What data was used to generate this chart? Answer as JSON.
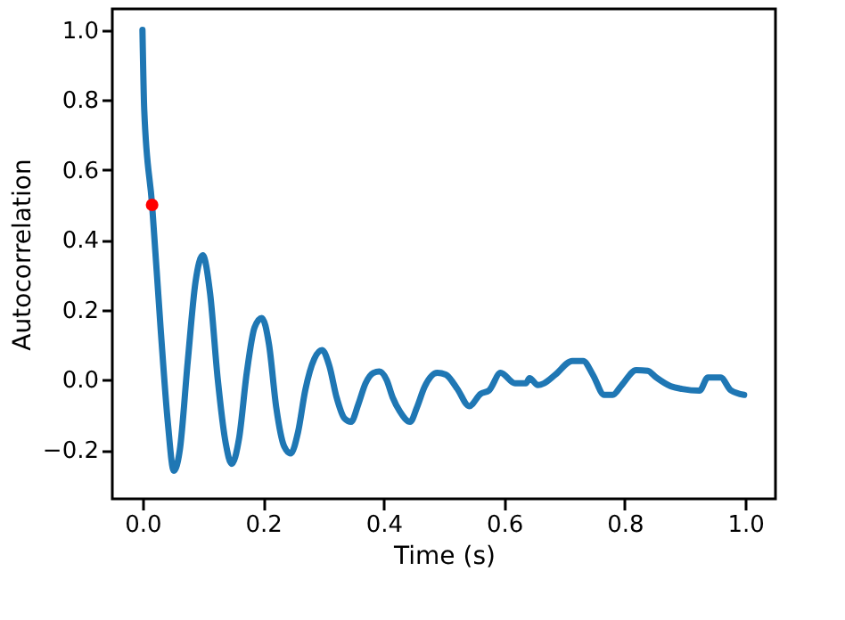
{
  "chart_data": {
    "type": "line",
    "xlabel": "Time (s)",
    "ylabel": "Autocorrelation",
    "xlim": [
      -0.05,
      1.05
    ],
    "ylim": [
      -0.34,
      1.06
    ],
    "xticks": [
      {
        "value": 0,
        "label": "0.0"
      },
      0.2,
      0.4,
      0.6,
      0.8,
      {
        "value": 1,
        "label": "1.0"
      }
    ],
    "yticks": [
      -0.2,
      {
        "value": 0,
        "label": "0.0"
      },
      0.2,
      0.4,
      0.6,
      0.8,
      {
        "value": 1,
        "label": "1.0"
      }
    ],
    "series": [
      {
        "color": "#1f77b4",
        "x": [
          0,
          0.003,
          0.016,
          0.03,
          0.042,
          0.052,
          0.062,
          0.075,
          0.088,
          0.1,
          0.112,
          0.125,
          0.138,
          0.148,
          0.16,
          0.173,
          0.186,
          0.198,
          0.21,
          0.222,
          0.235,
          0.246,
          0.258,
          0.27,
          0.285,
          0.298,
          0.31,
          0.322,
          0.335,
          0.346,
          0.358,
          0.37,
          0.383,
          0.393,
          0.405,
          0.415,
          0.427,
          0.444,
          0.455,
          0.468,
          0.489,
          0.503,
          0.522,
          0.542,
          0.561,
          0.575,
          0.594,
          0.618,
          0.636,
          0.642,
          0.656,
          0.666,
          0.685,
          0.713,
          0.731,
          0.747,
          0.766,
          0.78,
          0.795,
          0.819,
          0.838,
          0.852,
          0.876,
          0.895,
          0.924,
          0.938,
          0.959,
          0.976,
          0.998
        ],
        "values": [
          1.0,
          0.77,
          0.5,
          0.15,
          -0.12,
          -0.26,
          -0.2,
          0.05,
          0.28,
          0.356,
          0.25,
          0.0,
          -0.18,
          -0.24,
          -0.17,
          0.02,
          0.15,
          0.177,
          0.1,
          -0.08,
          -0.19,
          -0.21,
          -0.15,
          -0.03,
          0.06,
          0.085,
          0.04,
          -0.05,
          -0.11,
          -0.12,
          -0.07,
          -0.01,
          0.02,
          0.024,
          0.0,
          -0.05,
          -0.09,
          -0.12,
          -0.08,
          -0.02,
          0.02,
          0.015,
          -0.025,
          -0.075,
          -0.04,
          -0.03,
          0.02,
          -0.01,
          -0.01,
          0.005,
          -0.015,
          -0.01,
          0.015,
          0.054,
          0.054,
          0.015,
          -0.043,
          -0.043,
          -0.015,
          0.028,
          0.026,
          0.007,
          -0.018,
          -0.026,
          -0.031,
          0.007,
          0.007,
          -0.03,
          -0.043
        ]
      },
      {
        "type": "scatter",
        "color": "#ff0000",
        "marker": "circle",
        "x": [
          0.016
        ],
        "values": [
          0.5
        ]
      }
    ]
  }
}
